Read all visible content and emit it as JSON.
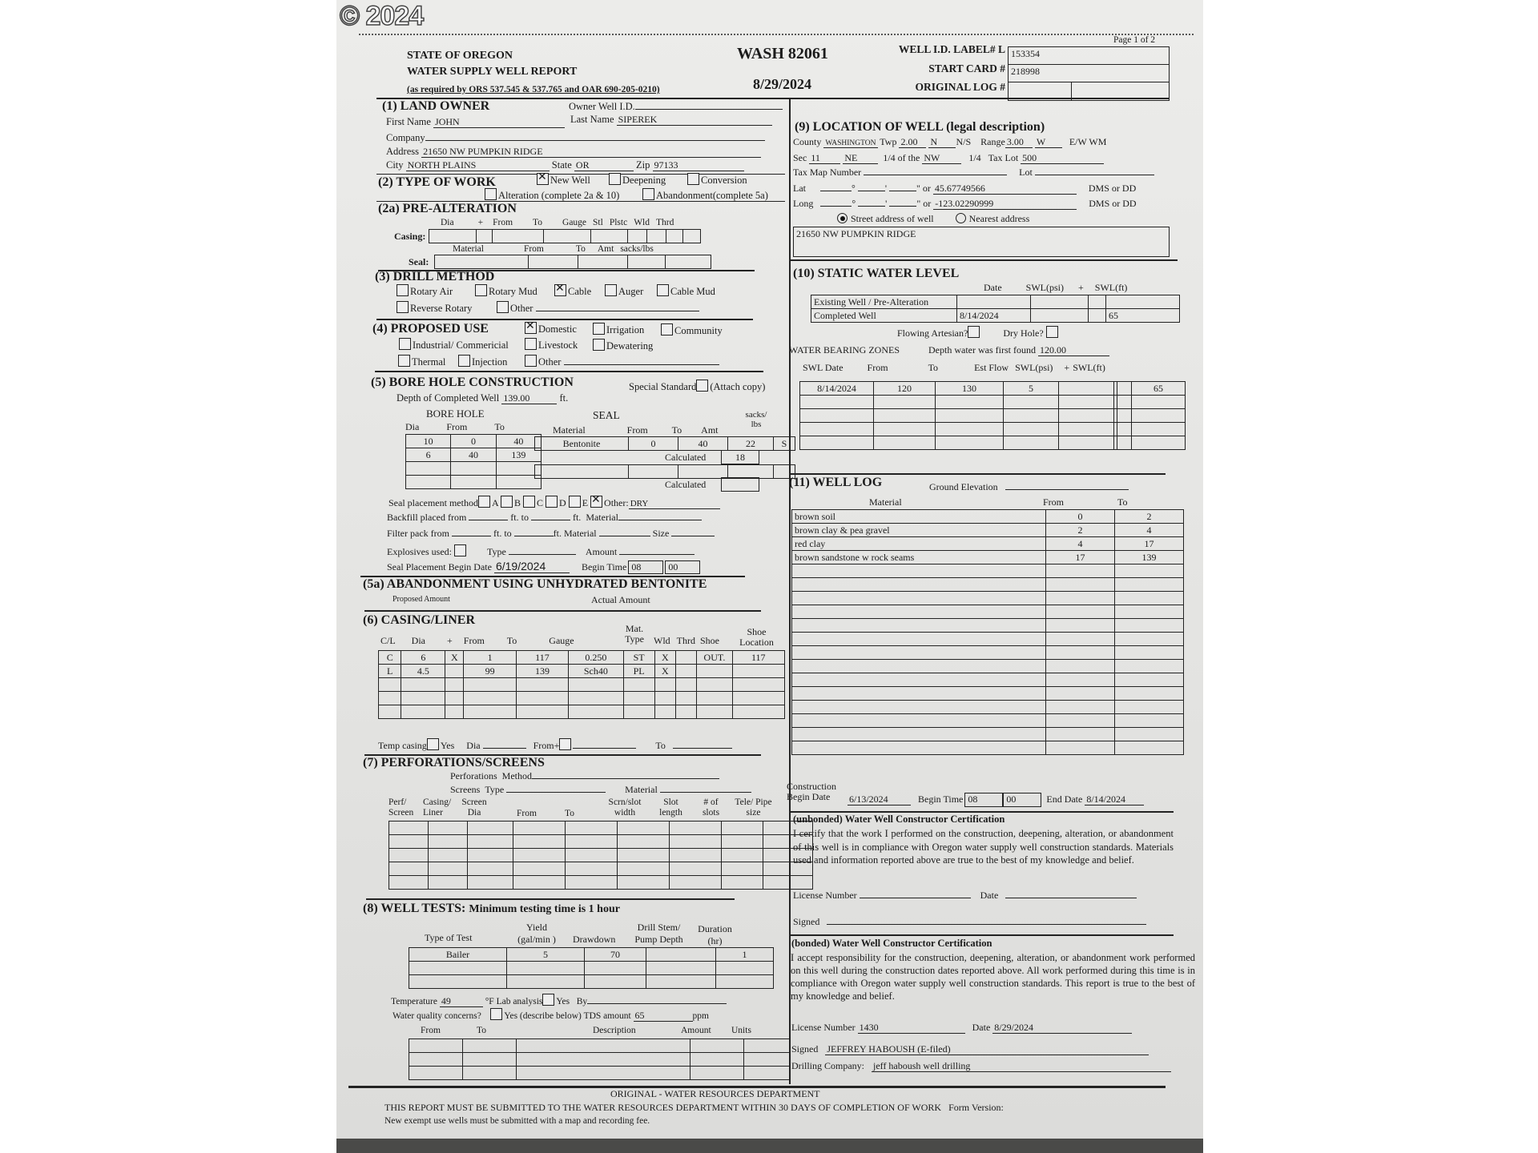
{
  "watermark": "© 2024",
  "header": {
    "state": "STATE OF OREGON",
    "title": "WATER SUPPLY WELL REPORT",
    "statute": "(as required by ORS 537.545 & 537.765 and OAR 690-205-0210)",
    "well_number": "WASH  82061",
    "report_date": "8/29/2024",
    "page": "Page 1 of 2",
    "well_id_label": "WELL I.D. LABEL# L",
    "well_id": "153354",
    "start_card_label": "START CARD #",
    "start_card": "218998",
    "original_log_label": "ORIGINAL LOG #"
  },
  "land_owner": {
    "heading": "(1) LAND  OWNER",
    "owner_well_id_label": "Owner Well I.D.",
    "first_name_label": "First Name",
    "first_name": "JOHN",
    "last_name_label": "Last Name",
    "last_name": "SIPEREK",
    "company_label": "Company",
    "address_label": "Address",
    "address": "21650 NW PUMPKIN RIDGE",
    "city_label": "City",
    "city": "NORTH PLAINS",
    "state_label": "State",
    "state": "OR",
    "zip_label": "Zip",
    "zip": "97133"
  },
  "type_of_work": {
    "heading": "(2) TYPE OF WORK",
    "options": [
      {
        "label": "New Well",
        "checked": true
      },
      {
        "label": "Deepening",
        "checked": false
      },
      {
        "label": "Conversion",
        "checked": false
      },
      {
        "label": "Alteration (complete 2a & 10)",
        "checked": false
      },
      {
        "label": "Abandonment(complete 5a)",
        "checked": false
      }
    ]
  },
  "pre_alteration": {
    "heading": "(2a) PRE-ALTERATION",
    "casing_label": "Casing:",
    "seal_label": "Seal:",
    "casing_columns": [
      "Dia",
      "+",
      "From",
      "To",
      "Gauge",
      "Stl",
      "Plstc",
      "Wld",
      "Thrd"
    ],
    "seal_columns": [
      "Material",
      "From",
      "To",
      "Amt",
      "sacks/lbs"
    ]
  },
  "drill_method": {
    "heading": "(3) DRILL METHOD",
    "options": [
      {
        "label": "Rotary Air",
        "checked": false
      },
      {
        "label": "Rotary Mud",
        "checked": false
      },
      {
        "label": "Cable",
        "checked": true
      },
      {
        "label": "Auger",
        "checked": false
      },
      {
        "label": "Cable Mud",
        "checked": false
      },
      {
        "label": "Reverse Rotary",
        "checked": false
      },
      {
        "label": "Other",
        "checked": false
      }
    ]
  },
  "proposed_use": {
    "heading": "(4) PROPOSED USE",
    "options": [
      {
        "label": "Domestic",
        "checked": true
      },
      {
        "label": "Irrigation",
        "checked": false
      },
      {
        "label": "Community",
        "checked": false
      },
      {
        "label": "Industrial/ Commericial",
        "checked": false
      },
      {
        "label": "Livestock",
        "checked": false
      },
      {
        "label": "Dewatering",
        "checked": false
      },
      {
        "label": "Thermal",
        "checked": false
      },
      {
        "label": "Injection",
        "checked": false
      },
      {
        "label": "Other",
        "checked": false
      }
    ]
  },
  "bore_hole_construction": {
    "heading": "(5) BORE HOLE CONSTRUCTION",
    "special_standard_label": "Special Standard",
    "attach_copy_label": "(Attach copy)",
    "depth_label": "Depth of Completed Well",
    "depth": "139.00",
    "depth_unit": "ft.",
    "bore_hole_title": "BORE HOLE",
    "bore_columns": [
      "Dia",
      "From",
      "To"
    ],
    "bore_rows": [
      [
        "10",
        "0",
        "40"
      ],
      [
        "6",
        "40",
        "139"
      ]
    ],
    "seal_title": "SEAL",
    "seal_columns": [
      "Material",
      "From",
      "To",
      "Amt",
      "sacks/ lbs"
    ],
    "seal_rows": [
      [
        "Bentonite",
        "0",
        "40",
        "22",
        "S"
      ]
    ],
    "calculated_label": "Calculated",
    "calculated_1": "18",
    "seal_method_label": "Seal placement method",
    "seal_methods": [
      {
        "label": "A",
        "checked": false
      },
      {
        "label": "B",
        "checked": false
      },
      {
        "label": "C",
        "checked": false
      },
      {
        "label": "D",
        "checked": false
      },
      {
        "label": "E",
        "checked": false
      },
      {
        "label": "Other:",
        "checked": true
      }
    ],
    "seal_method_other": "DRY",
    "backfill_label": "Backfill placed from",
    "ft_to": "ft. to",
    "ft": "ft.",
    "material_label": "Material",
    "filter_label": "Filter pack from",
    "ft_material": "ft. Material",
    "size_label": "Size",
    "explosives_label": "Explosives used:",
    "type_label": "Type",
    "amount_label": "Amount",
    "seal_begin_label": "Seal Placement Begin Date",
    "seal_begin_date": "6/19/2024",
    "begin_time_label": "Begin Time",
    "begin_hour": "08",
    "begin_minute": "00"
  },
  "abandonment": {
    "heading": "(5a) ABANDONMENT USING UNHYDRATED BENTONITE",
    "proposed_label": "Proposed Amount",
    "actual_label": "Actual Amount"
  },
  "casing_liner": {
    "heading": "(6) CASING/LINER",
    "columns": [
      "C/L",
      "Dia",
      "+",
      "From",
      "To",
      "Gauge",
      "Mat. Type",
      "Wld",
      "Thrd",
      "Shoe",
      "Shoe Location"
    ],
    "rows": [
      [
        "C",
        "6",
        "X",
        "1",
        "117",
        "0.250",
        "ST",
        "X",
        "",
        "OUT.",
        "117"
      ],
      [
        "L",
        "4.5",
        "",
        "99",
        "139",
        "Sch40",
        "PL",
        "X",
        "",
        "",
        ""
      ]
    ],
    "temp_casing_label": "Temp casing",
    "yes_label": "Yes",
    "dia_label": "Dia",
    "from_label": "From+",
    "to_label": "To"
  },
  "perforations": {
    "heading": "(7) PERFORATIONS/SCREENS",
    "perforations_label": "Perforations",
    "method_label": "Method",
    "screens_label": "Screens",
    "type_label": "Type",
    "material_label": "Material",
    "columns": [
      "Perf/ Screen",
      "Casing/ Liner",
      "Screen Dia",
      "From",
      "To",
      "Scrn/slot width",
      "Slot length",
      "# of slots",
      "Tele/ Pipe size"
    ]
  },
  "well_tests": {
    "heading": "(8) WELL TESTS:",
    "heading_note": "Minimum testing time is 1 hour",
    "columns": [
      "Type of Test",
      "Yield (gal/min )",
      "Drawdown",
      "Drill Stem/ Pump Depth",
      "Duration (hr)"
    ],
    "rows": [
      [
        "Bailer",
        "5",
        "70",
        "",
        "1"
      ]
    ],
    "temperature_label": "Temperature",
    "temperature": "49",
    "temperature_unit": "°F",
    "lab_analysis_label": "Lab analysis",
    "yes_label": "Yes",
    "by_label": "By",
    "water_quality_label": "Water quality concerns?",
    "yes_describe_label": "Yes (describe below)",
    "tds_label": "TDS amount",
    "tds": "65",
    "tds_unit": "ppm",
    "quality_columns": [
      "From",
      "To",
      "Description",
      "Amount",
      "Units"
    ]
  },
  "location": {
    "heading": "(9) LOCATION OF WELL (legal description)",
    "county_label": "County",
    "county": "WASHINGTON",
    "twp_label": "Twp",
    "twp": "2.00",
    "twp_dir": "N",
    "ns_label": "N/S",
    "range_label": "Range",
    "range": "3.00",
    "range_dir": "W",
    "ew_label": "E/W WM",
    "sec_label": "Sec",
    "sec": "11",
    "quarter": "NE",
    "quarter_of_label": "1/4 of the",
    "quarter2": "NW",
    "quarter2_label": "1/4",
    "tax_lot_label": "Tax Lot",
    "tax_lot": "500",
    "tax_map_label": "Tax Map Number",
    "lot_label": "Lot",
    "lat_label": "Lat",
    "lat": "45.67749566",
    "long_label": "Long",
    "long": "-123.02290999",
    "or_label": "\" or",
    "dms_label": "DMS or DD",
    "street_address_label": "Street address of well",
    "nearest_address_label": "Nearest address",
    "street_selected": true,
    "well_address": "21650 NW PUMPKIN RIDGE"
  },
  "static_water_level": {
    "heading": "(10) STATIC WATER LEVEL",
    "columns": [
      "Date",
      "SWL(psi)",
      "+",
      "SWL(ft)"
    ],
    "rows": [
      [
        "Existing Well / Pre-Alteration",
        "",
        "",
        "",
        ""
      ],
      [
        "Completed Well",
        "8/14/2024",
        "",
        "",
        "65"
      ]
    ],
    "flowing_label": "Flowing Artesian?",
    "dry_hole_label": "Dry Hole?",
    "zones_label": "WATER BEARING ZONES",
    "depth_found_label": "Depth water was first found",
    "depth_found": "120.00",
    "zone_columns": [
      "SWL Date",
      "From",
      "To",
      "Est Flow",
      "SWL(psi)",
      "+",
      "SWL(ft)"
    ],
    "zone_rows": [
      [
        "8/14/2024",
        "120",
        "130",
        "5",
        ""
      ],
      [],
      [],
      [],
      []
    ],
    "zone_swl_rows": [
      [
        "",
        "65"
      ],
      [],
      [],
      [],
      []
    ]
  },
  "well_log": {
    "heading": "(11) WELL LOG",
    "ground_elevation_label": "Ground Elevation",
    "columns": [
      "Material",
      "From",
      "To"
    ],
    "rows": [
      [
        "brown soil",
        "0",
        "2"
      ],
      [
        "brown clay & pea gravel",
        "2",
        "4"
      ],
      [
        "red clay",
        "4",
        "17"
      ],
      [
        "brown sandstone w rock seams",
        "17",
        "139"
      ]
    ],
    "construction_label": "Construction",
    "begin_date_label": "Begin Date",
    "begin_date": "6/13/2024",
    "begin_time_label": "Begin Time",
    "begin_hour": "08",
    "begin_minute": "00",
    "end_date_label": "End Date",
    "end_date": "8/14/2024"
  },
  "unbonded_cert": {
    "heading": "(unbonded) Water Well Constructor Certification",
    "text": "I certify that the work I performed on the construction, deepening, alteration, or abandonment of this well is in compliance with Oregon water supply well construction standards.  Materials used and information reported above are true to the best of my knowledge and belief.",
    "license_label": "License Number",
    "date_label": "Date",
    "signed_label": "Signed"
  },
  "bonded_cert": {
    "heading": "(bonded) Water Well Constructor Certification",
    "text": "I accept responsibility for the construction, deepening, alteration, or abandonment work performed on this well during the construction dates reported  above.  All work performed during this time is in compliance with Oregon water  supply well construction standards.  This report is true to the best of my knowledge  and belief.",
    "license_label": "License Number",
    "license": "1430",
    "date_label": "Date",
    "date": "8/29/2024",
    "signed_label": "Signed",
    "signed": "JEFFREY HABOUSH (E-filed)",
    "company_label": "Drilling Company:",
    "company": "jeff haboush well drilling"
  },
  "footer": {
    "original": "ORIGINAL - WATER RESOURCES DEPARTMENT",
    "notice": "THIS REPORT MUST BE SUBMITTED TO THE WATER RESOURCES DEPARTMENT WITHIN 30 DAYS OF COMPLETION OF WORK",
    "form_version_label": "Form Version:",
    "exempt_note": "New exempt use wells must be submitted with a map and recording fee."
  }
}
